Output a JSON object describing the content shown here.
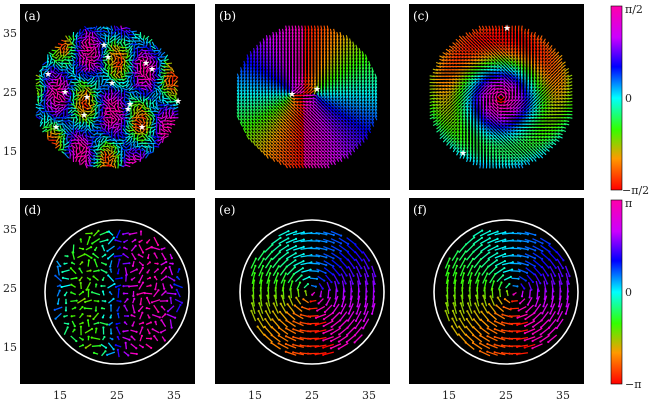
{
  "panels": [
    {
      "label": "(a)",
      "type": "spin-pattern",
      "pattern": "disordered",
      "stars": true
    },
    {
      "label": "(b)",
      "type": "spin-pattern",
      "pattern": "vortex-pair",
      "stars": true
    },
    {
      "label": "(c)",
      "type": "spin-pattern",
      "pattern": "ring-domain",
      "stars": true
    },
    {
      "label": "(d)",
      "type": "arrow-field",
      "pattern": "weak-mixed"
    },
    {
      "label": "(e)",
      "type": "arrow-field",
      "pattern": "vortex"
    },
    {
      "label": "(f)",
      "type": "arrow-field",
      "pattern": "vortex-offset"
    }
  ],
  "axes": {
    "y_ticks": [
      "35",
      "25",
      "15"
    ],
    "x_ticks": [
      "15",
      "25",
      "35"
    ]
  },
  "colorbars": {
    "top": {
      "max_label": "π/2",
      "mid_label": "0",
      "min_label": "−π/2"
    },
    "bottom": {
      "max_label": "π",
      "mid_label": "0",
      "min_label": "−π"
    }
  }
}
